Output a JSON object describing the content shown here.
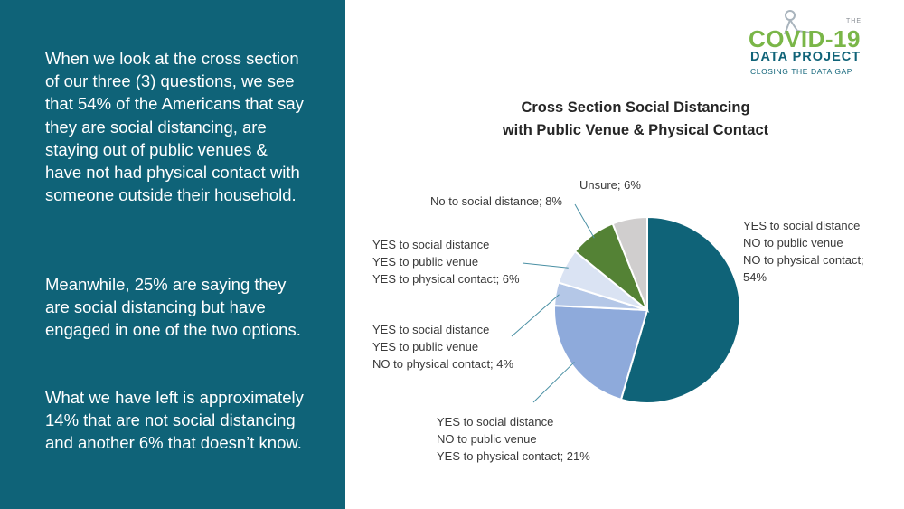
{
  "text": {
    "para1": "When we look at the cross section of our three (3) questions, we see that 54% of the Americans that say they are social distancing, are staying out of public venues & have not had physical contact with someone outside their household.",
    "para2": "Meanwhile, 25% are saying they are social distancing but have engaged in one of the two options.",
    "para3": "What we have left is approximately 14% that are not social distancing and another 6% that doesn’t know."
  },
  "logo": {
    "the": "THE",
    "covid": "COVID-19",
    "data_project": "DATA PROJECT",
    "tagline": "CLOSING THE DATA GAP"
  },
  "chart_data": {
    "type": "pie",
    "title_line1": "Cross Section Social Distancing",
    "title_line2": "with Public Venue & Physical Contact",
    "slices": [
      {
        "name_lines": [
          "YES to social distance",
          "NO to public venue",
          "NO to physical contact;"
        ],
        "value": 54,
        "value_label": "54%",
        "color": "#0f6378"
      },
      {
        "name_lines": [
          "YES to social distance",
          "NO to public venue",
          "YES to physical contact; 21%"
        ],
        "value": 21,
        "value_label": "",
        "color": "#8eaadb"
      },
      {
        "name_lines": [
          "YES to social distance",
          "YES to public venue",
          "NO to physical contact; 4%"
        ],
        "value": 4,
        "value_label": "",
        "color": "#b4c7e7"
      },
      {
        "name_lines": [
          "YES to social distance",
          "YES to public venue",
          "YES to physical contact; 6%"
        ],
        "value": 6,
        "value_label": "",
        "color": "#dae3f3"
      },
      {
        "name_lines": [
          "No to social distance; 8%"
        ],
        "value": 8,
        "value_label": "",
        "color": "#548235"
      },
      {
        "name_lines": [
          "Unsure; 6%"
        ],
        "value": 6,
        "value_label": "",
        "color": "#d0cece"
      }
    ]
  }
}
